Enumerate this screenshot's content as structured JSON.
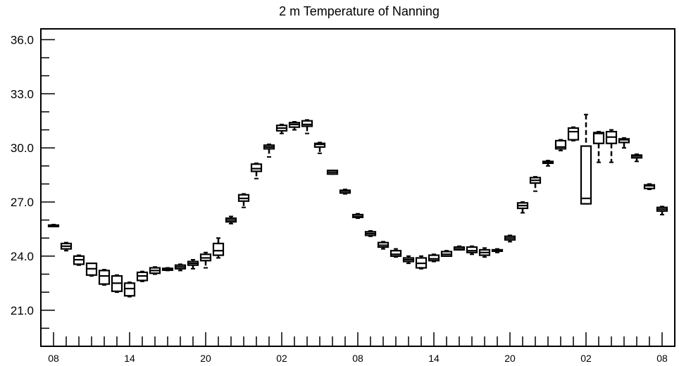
{
  "chart_data": {
    "type": "box",
    "title": "2 m Temperature of Nanning",
    "xlabel": "",
    "ylabel": "",
    "ylim": [
      19.0,
      36.6
    ],
    "y_ticks": [
      "21.0",
      "24.0",
      "27.0",
      "30.0",
      "33.0",
      "36.0"
    ],
    "y_tick_values": [
      21,
      24,
      27,
      30,
      33,
      36
    ],
    "x_ticks": [
      {
        "label": "08",
        "hour": 0
      },
      {
        "label": "14",
        "hour": 6
      },
      {
        "label": "20",
        "hour": 12
      },
      {
        "label": "02",
        "hour": 18
      },
      {
        "label": "08",
        "hour": 24
      },
      {
        "label": "14",
        "hour": 30
      },
      {
        "label": "20",
        "hour": 36
      },
      {
        "label": "02",
        "hour": 42
      },
      {
        "label": "08",
        "hour": 48
      }
    ],
    "xlim": [
      -1,
      49
    ],
    "boxes": [
      {
        "hour": 0,
        "min": 25.65,
        "q1": 25.68,
        "median": 25.7,
        "q3": 25.72,
        "max": 25.75
      },
      {
        "hour": 1,
        "min": 24.3,
        "q1": 24.4,
        "median": 24.55,
        "q3": 24.7,
        "max": 24.75
      },
      {
        "hour": 2,
        "min": 23.5,
        "q1": 23.55,
        "median": 23.8,
        "q3": 24.0,
        "max": 24.05
      },
      {
        "hour": 3,
        "min": 22.9,
        "q1": 22.95,
        "median": 23.3,
        "q3": 23.6,
        "max": 23.6
      },
      {
        "hour": 4,
        "min": 22.4,
        "q1": 22.45,
        "median": 22.9,
        "q3": 23.2,
        "max": 23.25
      },
      {
        "hour": 5,
        "min": 22.0,
        "q1": 22.05,
        "median": 22.5,
        "q3": 22.9,
        "max": 22.95
      },
      {
        "hour": 6,
        "min": 21.75,
        "q1": 21.8,
        "median": 22.2,
        "q3": 22.5,
        "max": 22.55
      },
      {
        "hour": 7,
        "min": 22.6,
        "q1": 22.65,
        "median": 22.9,
        "q3": 23.1,
        "max": 23.15
      },
      {
        "hour": 8,
        "min": 23.0,
        "q1": 23.05,
        "median": 23.2,
        "q3": 23.35,
        "max": 23.4
      },
      {
        "hour": 9,
        "min": 23.2,
        "q1": 23.22,
        "median": 23.3,
        "q3": 23.32,
        "max": 23.35
      },
      {
        "hour": 10,
        "min": 23.2,
        "q1": 23.3,
        "median": 23.4,
        "q3": 23.5,
        "max": 23.55
      },
      {
        "hour": 11,
        "min": 23.3,
        "q1": 23.5,
        "median": 23.6,
        "q3": 23.7,
        "max": 23.8
      },
      {
        "hour": 12,
        "min": 23.35,
        "q1": 23.75,
        "median": 23.9,
        "q3": 24.1,
        "max": 24.2
      },
      {
        "hour": 13,
        "min": 23.9,
        "q1": 24.05,
        "median": 24.3,
        "q3": 24.7,
        "max": 25.0
      },
      {
        "hour": 14,
        "min": 25.8,
        "q1": 25.9,
        "median": 26.0,
        "q3": 26.1,
        "max": 26.2
      },
      {
        "hour": 15,
        "min": 26.7,
        "q1": 27.05,
        "median": 27.2,
        "q3": 27.4,
        "max": 27.45
      },
      {
        "hour": 16,
        "min": 28.3,
        "q1": 28.7,
        "median": 28.85,
        "q3": 29.1,
        "max": 29.15
      },
      {
        "hour": 17,
        "min": 29.5,
        "q1": 29.95,
        "median": 30.05,
        "q3": 30.15,
        "max": 30.2
      },
      {
        "hour": 18,
        "min": 30.8,
        "q1": 30.95,
        "median": 31.1,
        "q3": 31.25,
        "max": 31.3
      },
      {
        "hour": 19,
        "min": 31.0,
        "q1": 31.15,
        "median": 31.3,
        "q3": 31.4,
        "max": 31.45
      },
      {
        "hour": 20,
        "min": 30.8,
        "q1": 31.2,
        "median": 31.3,
        "q3": 31.5,
        "max": 31.55
      },
      {
        "hour": 21,
        "min": 29.7,
        "q1": 30.05,
        "median": 30.2,
        "q3": 30.25,
        "max": 30.3
      },
      {
        "hour": 22,
        "min": 28.55,
        "q1": 28.55,
        "median": 28.65,
        "q3": 28.75,
        "max": 28.75
      },
      {
        "hour": 23,
        "min": 27.45,
        "q1": 27.5,
        "median": 27.6,
        "q3": 27.65,
        "max": 27.7
      },
      {
        "hour": 24,
        "min": 26.1,
        "q1": 26.15,
        "median": 26.2,
        "q3": 26.3,
        "max": 26.35
      },
      {
        "hour": 25,
        "min": 25.1,
        "q1": 25.15,
        "median": 25.25,
        "q3": 25.35,
        "max": 25.4
      },
      {
        "hour": 26,
        "min": 24.4,
        "q1": 24.5,
        "median": 24.6,
        "q3": 24.75,
        "max": 24.8
      },
      {
        "hour": 27,
        "min": 23.95,
        "q1": 24.0,
        "median": 24.1,
        "q3": 24.3,
        "max": 24.4
      },
      {
        "hour": 28,
        "min": 23.6,
        "q1": 23.7,
        "median": 23.8,
        "q3": 23.9,
        "max": 24.0
      },
      {
        "hour": 29,
        "min": 23.3,
        "q1": 23.35,
        "median": 23.6,
        "q3": 23.9,
        "max": 24.0
      },
      {
        "hour": 30,
        "min": 23.7,
        "q1": 23.75,
        "median": 23.85,
        "q3": 24.05,
        "max": 24.1
      },
      {
        "hour": 31,
        "min": 24.0,
        "q1": 24.0,
        "median": 24.1,
        "q3": 24.25,
        "max": 24.3
      },
      {
        "hour": 32,
        "min": 24.35,
        "q1": 24.35,
        "median": 24.4,
        "q3": 24.5,
        "max": 24.55
      },
      {
        "hour": 33,
        "min": 24.1,
        "q1": 24.2,
        "median": 24.3,
        "q3": 24.5,
        "max": 24.55
      },
      {
        "hour": 34,
        "min": 23.95,
        "q1": 24.05,
        "median": 24.2,
        "q3": 24.35,
        "max": 24.45
      },
      {
        "hour": 35,
        "min": 24.2,
        "q1": 24.3,
        "median": 24.32,
        "q3": 24.35,
        "max": 24.4
      },
      {
        "hour": 36,
        "min": 24.8,
        "q1": 24.9,
        "median": 25.0,
        "q3": 25.1,
        "max": 25.15
      },
      {
        "hour": 37,
        "min": 26.4,
        "q1": 26.65,
        "median": 26.8,
        "q3": 26.95,
        "max": 27.0
      },
      {
        "hour": 38,
        "min": 27.6,
        "q1": 28.05,
        "median": 28.2,
        "q3": 28.35,
        "max": 28.4
      },
      {
        "hour": 39,
        "min": 29.0,
        "q1": 29.15,
        "median": 29.2,
        "q3": 29.25,
        "max": 29.3
      },
      {
        "hour": 40,
        "min": 29.85,
        "q1": 29.95,
        "median": 30.05,
        "q3": 30.4,
        "max": 30.45
      },
      {
        "hour": 41,
        "min": 30.4,
        "q1": 30.45,
        "median": 30.9,
        "q3": 31.1,
        "max": 31.15
      },
      {
        "hour": 42,
        "min": 26.9,
        "q1": 26.9,
        "median": 27.2,
        "q3": 30.1,
        "max": 31.85
      },
      {
        "hour": 43,
        "min": 29.2,
        "q1": 30.25,
        "median": 30.8,
        "q3": 30.85,
        "max": 30.9
      },
      {
        "hour": 44,
        "min": 29.2,
        "q1": 30.25,
        "median": 30.6,
        "q3": 30.9,
        "max": 31.0
      },
      {
        "hour": 45,
        "min": 30.0,
        "q1": 30.3,
        "median": 30.45,
        "q3": 30.5,
        "max": 30.55
      },
      {
        "hour": 46,
        "min": 29.25,
        "q1": 29.45,
        "median": 29.55,
        "q3": 29.6,
        "max": 29.65
      },
      {
        "hour": 47,
        "min": 27.7,
        "q1": 27.75,
        "median": 27.9,
        "q3": 27.95,
        "max": 28.0
      },
      {
        "hour": 48,
        "min": 26.3,
        "q1": 26.5,
        "median": 26.6,
        "q3": 26.7,
        "max": 26.75
      }
    ],
    "grid": false,
    "legend": "none"
  }
}
